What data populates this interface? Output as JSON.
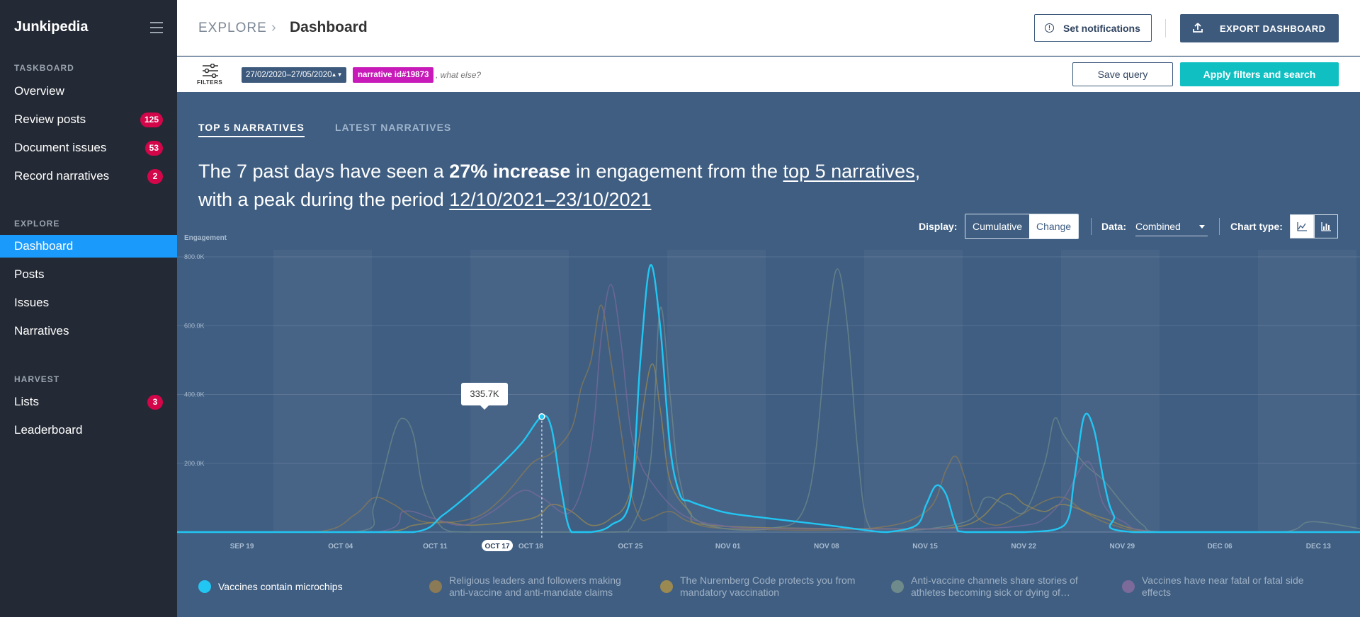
{
  "app": {
    "name": "Junkipedia"
  },
  "sidebar": {
    "sections": [
      {
        "title": "TASKBOARD",
        "items": [
          {
            "label": "Overview",
            "badge": null
          },
          {
            "label": "Review posts",
            "badge": "125"
          },
          {
            "label": "Document issues",
            "badge": "53"
          },
          {
            "label": "Record narratives",
            "badge": "2"
          }
        ]
      },
      {
        "title": "EXPLORE",
        "items": [
          {
            "label": "Dashboard",
            "badge": null,
            "active": true
          },
          {
            "label": "Posts",
            "badge": null
          },
          {
            "label": "Issues",
            "badge": null
          },
          {
            "label": "Narratives",
            "badge": null
          }
        ]
      },
      {
        "title": "HARVEST",
        "items": [
          {
            "label": "Lists",
            "badge": "3"
          },
          {
            "label": "Leaderboard",
            "badge": null
          }
        ]
      }
    ]
  },
  "header": {
    "breadcrumb_root": "EXPLORE",
    "page_title": "Dashboard",
    "notifications_label": "Set notifications",
    "export_label": "EXPORT DASHBOARD"
  },
  "filterbar": {
    "filters_label": "FILTERS",
    "date_range": "27/02/2020–27/05/2020",
    "narrative_chip": "narrative id#19873",
    "query_placeholder": ", what else?",
    "save_label": "Save query",
    "apply_label": "Apply filters and search"
  },
  "tabs": [
    {
      "label": "TOP 5 NARRATIVES",
      "active": true
    },
    {
      "label": "LATEST NARRATIVES",
      "active": false
    }
  ],
  "headline": {
    "p1": "The 7 past days have seen a ",
    "bold": "27% increase",
    "p2": " in engagement from the ",
    "link1": "top 5 narratives",
    "p3": ",",
    "p4": "with a peak during the period ",
    "link2": "12/10/2021–23/10/2021"
  },
  "controls": {
    "display_label": "Display:",
    "display_options": [
      "Cumulative",
      "Change"
    ],
    "display_selected": "Cumulative",
    "data_label": "Data:",
    "data_value": "Combined",
    "chart_type_label": "Chart type:",
    "chart_type_icons": [
      "line-chart-icon",
      "bar-chart-icon"
    ]
  },
  "tooltip": {
    "value": "335.7K"
  },
  "colors": {
    "background": "#3f5e82",
    "sidebar": "#242a35",
    "active_nav": "#1a9bfc",
    "badge": "#d3064a",
    "apply": "#10bfc2",
    "chip_narrative": "#c71ab8"
  },
  "chart_data": {
    "type": "line",
    "ylabel": "Engagement",
    "ylim": [
      0,
      800000
    ],
    "y_ticks": [
      "200.0K",
      "400.0K",
      "600.0K",
      "800.0K"
    ],
    "x_ticks": [
      "SEP 19",
      "OCT 04",
      "OCT 11",
      "OCT 17",
      "OCT 18",
      "OCT 25",
      "NOV 01",
      "NOV 08",
      "NOV 15",
      "NOV 22",
      "NOV 29",
      "DEC 06",
      "DEC 13"
    ],
    "highlight_tick": "OCT 17",
    "series": [
      {
        "name": "Vaccines contain microchips",
        "color": "#22c6f2",
        "highlighted": true,
        "points": [
          [
            0,
            0
          ],
          [
            14,
            0
          ],
          [
            24,
            0
          ],
          [
            27,
            50000
          ],
          [
            30,
            120000
          ],
          [
            33,
            200000
          ],
          [
            35,
            260000
          ],
          [
            37,
            335700
          ],
          [
            38,
            300000
          ],
          [
            39,
            120000
          ],
          [
            40,
            0
          ],
          [
            42,
            0
          ],
          [
            44,
            20000
          ],
          [
            46,
            100000
          ],
          [
            47,
            500000
          ],
          [
            48,
            775000
          ],
          [
            49,
            600000
          ],
          [
            50,
            250000
          ],
          [
            51,
            110000
          ],
          [
            52,
            90000
          ],
          [
            54,
            70000
          ],
          [
            56,
            55000
          ],
          [
            60,
            40000
          ],
          [
            66,
            20000
          ],
          [
            70,
            5000
          ],
          [
            72,
            0
          ],
          [
            75,
            20000
          ],
          [
            76,
            80000
          ],
          [
            77,
            135000
          ],
          [
            78,
            110000
          ],
          [
            79,
            20000
          ],
          [
            80,
            0
          ],
          [
            86,
            0
          ],
          [
            90,
            20000
          ],
          [
            91,
            150000
          ],
          [
            92,
            335000
          ],
          [
            93,
            300000
          ],
          [
            94,
            150000
          ],
          [
            95,
            50000
          ],
          [
            97,
            0
          ],
          [
            120,
            0
          ]
        ]
      },
      {
        "name": "Religious leaders and followers making anti-vaccine and anti-mandate claims",
        "color": "#8a7a55",
        "highlighted": false,
        "points": [
          [
            0,
            0
          ],
          [
            14,
            0
          ],
          [
            18,
            50000
          ],
          [
            20,
            100000
          ],
          [
            22,
            80000
          ],
          [
            25,
            30000
          ],
          [
            30,
            40000
          ],
          [
            33,
            100000
          ],
          [
            36,
            200000
          ],
          [
            38,
            230000
          ],
          [
            40,
            300000
          ],
          [
            41,
            420000
          ],
          [
            42,
            500000
          ],
          [
            43,
            660000
          ],
          [
            44,
            500000
          ],
          [
            45,
            300000
          ],
          [
            46,
            120000
          ],
          [
            47,
            40000
          ],
          [
            48,
            40000
          ],
          [
            50,
            60000
          ],
          [
            52,
            30000
          ],
          [
            56,
            10000
          ],
          [
            70,
            10000
          ],
          [
            76,
            60000
          ],
          [
            78,
            180000
          ],
          [
            79,
            220000
          ],
          [
            80,
            150000
          ],
          [
            81,
            50000
          ],
          [
            83,
            20000
          ],
          [
            85,
            40000
          ],
          [
            88,
            90000
          ],
          [
            90,
            100000
          ],
          [
            92,
            60000
          ],
          [
            95,
            20000
          ],
          [
            100,
            0
          ],
          [
            120,
            0
          ]
        ]
      },
      {
        "name": "The Nuremberg Code protects you from mandatory vaccination",
        "color": "#9a8950",
        "highlighted": false,
        "points": [
          [
            0,
            0
          ],
          [
            20,
            0
          ],
          [
            24,
            20000
          ],
          [
            27,
            30000
          ],
          [
            30,
            20000
          ],
          [
            36,
            40000
          ],
          [
            38,
            80000
          ],
          [
            40,
            60000
          ],
          [
            42,
            20000
          ],
          [
            44,
            40000
          ],
          [
            46,
            120000
          ],
          [
            48,
            480000
          ],
          [
            49,
            360000
          ],
          [
            50,
            150000
          ],
          [
            52,
            60000
          ],
          [
            54,
            20000
          ],
          [
            70,
            10000
          ],
          [
            80,
            20000
          ],
          [
            84,
            110000
          ],
          [
            86,
            80000
          ],
          [
            88,
            60000
          ],
          [
            90,
            80000
          ],
          [
            94,
            40000
          ],
          [
            100,
            0
          ],
          [
            120,
            0
          ]
        ]
      },
      {
        "name": "Anti-vaccine channels share stories of athletes becoming sick or dying of…",
        "color": "#6f8a8a",
        "highlighted": false,
        "points": [
          [
            0,
            0
          ],
          [
            18,
            0
          ],
          [
            20,
            80000
          ],
          [
            22,
            290000
          ],
          [
            23,
            330000
          ],
          [
            24,
            280000
          ],
          [
            25,
            120000
          ],
          [
            27,
            10000
          ],
          [
            30,
            0
          ],
          [
            44,
            0
          ],
          [
            46,
            10000
          ],
          [
            48,
            200000
          ],
          [
            49,
            650000
          ],
          [
            50,
            400000
          ],
          [
            51,
            150000
          ],
          [
            53,
            30000
          ],
          [
            60,
            10000
          ],
          [
            64,
            100000
          ],
          [
            66,
            600000
          ],
          [
            67,
            765000
          ],
          [
            68,
            600000
          ],
          [
            69,
            250000
          ],
          [
            70,
            30000
          ],
          [
            72,
            0
          ],
          [
            80,
            30000
          ],
          [
            82,
            100000
          ],
          [
            84,
            80000
          ],
          [
            86,
            60000
          ],
          [
            88,
            200000
          ],
          [
            89,
            330000
          ],
          [
            90,
            280000
          ],
          [
            92,
            200000
          ],
          [
            94,
            150000
          ],
          [
            96,
            80000
          ],
          [
            98,
            20000
          ],
          [
            100,
            0
          ],
          [
            112,
            0
          ],
          [
            115,
            30000
          ],
          [
            120,
            10000
          ]
        ]
      },
      {
        "name": "Vaccines have near fatal or fatal side effects",
        "color": "#7b6a9a",
        "highlighted": false,
        "points": [
          [
            0,
            0
          ],
          [
            20,
            0
          ],
          [
            23,
            60000
          ],
          [
            26,
            40000
          ],
          [
            29,
            20000
          ],
          [
            32,
            60000
          ],
          [
            35,
            120000
          ],
          [
            37,
            100000
          ],
          [
            40,
            60000
          ],
          [
            42,
            250000
          ],
          [
            43,
            560000
          ],
          [
            44,
            720000
          ],
          [
            45,
            560000
          ],
          [
            46,
            300000
          ],
          [
            47,
            200000
          ],
          [
            48,
            150000
          ],
          [
            50,
            80000
          ],
          [
            52,
            40000
          ],
          [
            55,
            20000
          ],
          [
            60,
            10000
          ],
          [
            80,
            10000
          ],
          [
            86,
            20000
          ],
          [
            88,
            40000
          ],
          [
            90,
            100000
          ],
          [
            92,
            200000
          ],
          [
            93,
            180000
          ],
          [
            94,
            80000
          ],
          [
            96,
            30000
          ],
          [
            100,
            0
          ],
          [
            120,
            0
          ]
        ]
      }
    ]
  }
}
